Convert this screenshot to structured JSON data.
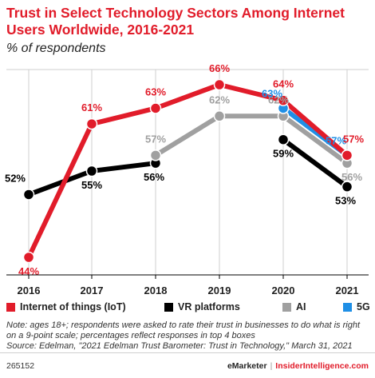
{
  "title": "Trust in Select Technology Sectors Among Internet Users Worldwide, 2016-2021",
  "subtitle": "% of respondents",
  "chart_data": {
    "type": "line",
    "x": [
      "2016",
      "2017",
      "2018",
      "2019",
      "2020",
      "2021"
    ],
    "ylim": [
      40,
      70
    ],
    "grid": false,
    "legend_position": "bottom",
    "series": [
      {
        "name": "VR platforms",
        "color": "#000000",
        "values": [
          52,
          55,
          56,
          null,
          59,
          53
        ],
        "labels": [
          "52%",
          "55%",
          "56%",
          null,
          "59%",
          "53%"
        ]
      },
      {
        "name": "AI",
        "color": "#a0a0a0",
        "values": [
          null,
          null,
          57,
          62,
          62,
          56
        ],
        "labels": [
          null,
          null,
          "57%",
          "62%",
          "62%",
          "56%"
        ]
      },
      {
        "name": "5G",
        "color": "#1f8fe6",
        "values": [
          null,
          null,
          null,
          null,
          63,
          57
        ],
        "labels": [
          null,
          null,
          null,
          null,
          "63%",
          "57%"
        ]
      },
      {
        "name": "Internet of things (IoT)",
        "color": "#e11c2a",
        "values": [
          44,
          61,
          63,
          66,
          64,
          57
        ],
        "labels": [
          "44%",
          "61%",
          "63%",
          "66%",
          "64%",
          "57%"
        ]
      }
    ]
  },
  "legend": {
    "items": [
      {
        "label": "Internet of things (IoT)",
        "color": "#e11c2a"
      },
      {
        "label": "VR platforms",
        "color": "#000000"
      },
      {
        "label": "AI",
        "color": "#a0a0a0"
      },
      {
        "label": "5G",
        "color": "#1f8fe6"
      }
    ]
  },
  "note": "Note: ages 18+; respondents were asked to rate their trust in businesses to do what is right on a 9-point scale; percentages reflect responses in top 4 boxes",
  "source": "Source: Edelman, \"2021 Edelman Trust Barometer: Trust in Technology,\" March 31, 2021",
  "footer": {
    "id": "265152",
    "brand": "eMarketer",
    "separator": "|",
    "site": "InsiderIntelligence.com"
  }
}
